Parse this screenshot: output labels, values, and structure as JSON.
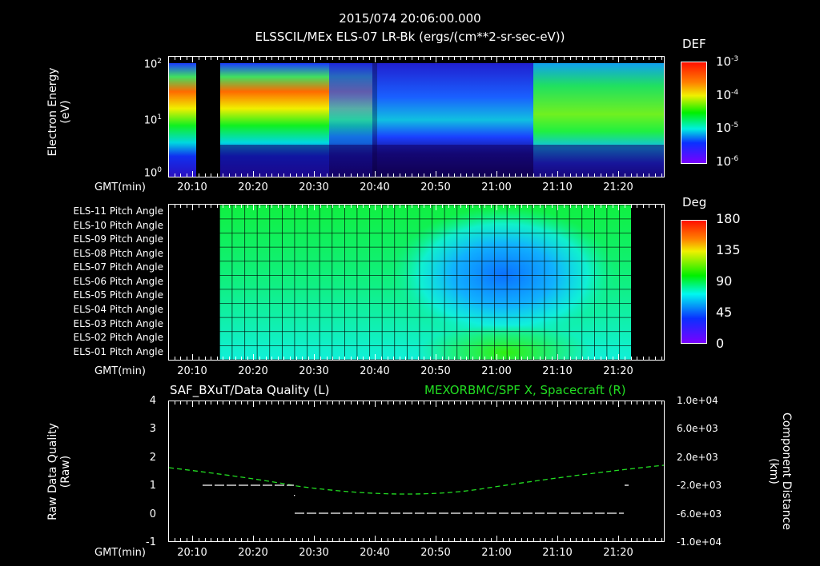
{
  "header": {
    "timestamp": "2015/074 20:06:00.000",
    "subtitle": "ELSSCIL/MEx ELS-07 LR-Bk  (ergs/(cm**2-sr-sec-eV))"
  },
  "panels": {
    "spectrogram": {
      "ylabel_line1": "Electron Energy",
      "ylabel_line2": "(eV)",
      "yticks": [
        "10",
        "10",
        "10"
      ],
      "ytick_exp": [
        "2",
        "1",
        "0"
      ],
      "xaxis_label": "GMT(min)",
      "colorbar_title": "DEF",
      "colorbar_ticks": [
        "10",
        "10",
        "10",
        "10"
      ],
      "colorbar_exp": [
        "-3",
        "-4",
        "-5",
        "-6"
      ]
    },
    "pitch_angle": {
      "row_labels": [
        "ELS-11 Pitch Angle",
        "ELS-10 Pitch Angle",
        "ELS-09 Pitch Angle",
        "ELS-08 Pitch Angle",
        "ELS-07 Pitch Angle",
        "ELS-06 Pitch Angle",
        "ELS-05 Pitch Angle",
        "ELS-04 Pitch Angle",
        "ELS-03 Pitch Angle",
        "ELS-02 Pitch Angle",
        "ELS-01 Pitch Angle"
      ],
      "xaxis_label": "GMT(min)",
      "colorbar_title": "Deg",
      "colorbar_ticks": [
        "180",
        "135",
        "90",
        "45",
        "0"
      ]
    },
    "quality": {
      "title_left": "SAF_BXuT/Data Quality (L)",
      "title_right": "MEXORBMC/SPF X, Spacecraft (R)",
      "ylabel_left_line1": "Raw Data Quality",
      "ylabel_left_line2": "(Raw)",
      "ylabel_right_line1": "Component Distance",
      "ylabel_right_line2": "(km)",
      "yticks_left": [
        "4",
        "3",
        "2",
        "1",
        "0",
        "-1"
      ],
      "yticks_right": [
        "1.0e+04",
        "6.0e+03",
        "2.0e+03",
        "-2.0e+03",
        "-6.0e+03",
        "-1.0e+04"
      ],
      "xaxis_label": "GMT(min)"
    }
  },
  "xticks": [
    "20:10",
    "20:20",
    "20:30",
    "20:40",
    "20:50",
    "21:00",
    "21:10",
    "21:20"
  ],
  "colors": {
    "background": "#000000",
    "axes": "#ffffff",
    "spacecraft_line": "#22dd22"
  },
  "chart_data": [
    {
      "type": "heatmap",
      "title": "ELSSCIL/MEx ELS-07 LR-Bk (ergs/(cm**2-sr-sec-eV))",
      "xlabel": "GMT(min)",
      "ylabel": "Electron Energy (eV)",
      "x_range": [
        "20:06",
        "21:27"
      ],
      "y_scale": "log",
      "ylim": [
        1,
        150
      ],
      "yticks": [
        1,
        10,
        100
      ],
      "colorbar": {
        "label": "DEF",
        "scale": "log",
        "range": [
          1e-06,
          0.001
        ],
        "ticks": [
          "1e-3",
          "1e-4",
          "1e-5",
          "1e-6"
        ]
      },
      "data_gap": [
        "20:11",
        "20:14"
      ],
      "notes": "High flux (red/orange ~3e-4) at 30-80 eV around 20:10 and 20:14-20:25; green band ~20-40 eV decays through 20:45; low flux (blue/black) 20:45-21:05 with vertical streaks; enhanced green/yellow 21:06-21:27 around 10-60 eV."
    },
    {
      "type": "heatmap",
      "title": "Pitch Angle",
      "xlabel": "GMT(min)",
      "rows": [
        "ELS-11",
        "ELS-10",
        "ELS-09",
        "ELS-08",
        "ELS-07",
        "ELS-06",
        "ELS-05",
        "ELS-04",
        "ELS-03",
        "ELS-02",
        "ELS-01"
      ],
      "x_range": [
        "20:14",
        "21:21"
      ],
      "colorbar": {
        "label": "Deg",
        "range": [
          0,
          180
        ],
        "ticks": [
          0,
          45,
          90,
          135,
          180
        ]
      },
      "notes": "Mostly ~90-100 deg (green) for upper anodes, ~70-75 deg (cyan-green) for lower anodes; minimum ~35-45 deg (blue) centred at ~21:02 on ELS-07/ELS-08; ELS-01/02 near 21:00 rise to ~100 deg."
    },
    {
      "type": "line",
      "title_left": "SAF_BXuT/Data Quality (L)",
      "title_right": "MEXORBMC/SPF X, Spacecraft (R)",
      "xlabel": "GMT(min)",
      "ylabel_left": "Raw Data Quality (Raw)",
      "ylabel_right": "Component Distance (km)",
      "ylim_left": [
        -1,
        4
      ],
      "ylim_right": [
        -10000,
        10000
      ],
      "x": [
        "20:06",
        "20:10",
        "20:20",
        "20:26",
        "20:30",
        "20:40",
        "20:50",
        "21:00",
        "21:10",
        "21:20",
        "21:27"
      ],
      "series": [
        {
          "name": "Data Quality (L)",
          "color": "#ffffff",
          "axis": "left",
          "values": [
            null,
            null,
            1,
            1,
            0,
            0,
            0,
            0,
            0,
            0,
            null
          ],
          "notes": "1 from ~20:11 to 20:26, 0 from 20:26 to 21:21"
        },
        {
          "name": "SPF X Spacecraft (R)",
          "color": "#22dd22",
          "axis": "right",
          "values": [
            2400,
            2200,
            1100,
            -400,
            -1300,
            -2400,
            -2900,
            -2600,
            -1500,
            200,
            1300
          ]
        }
      ]
    }
  ]
}
